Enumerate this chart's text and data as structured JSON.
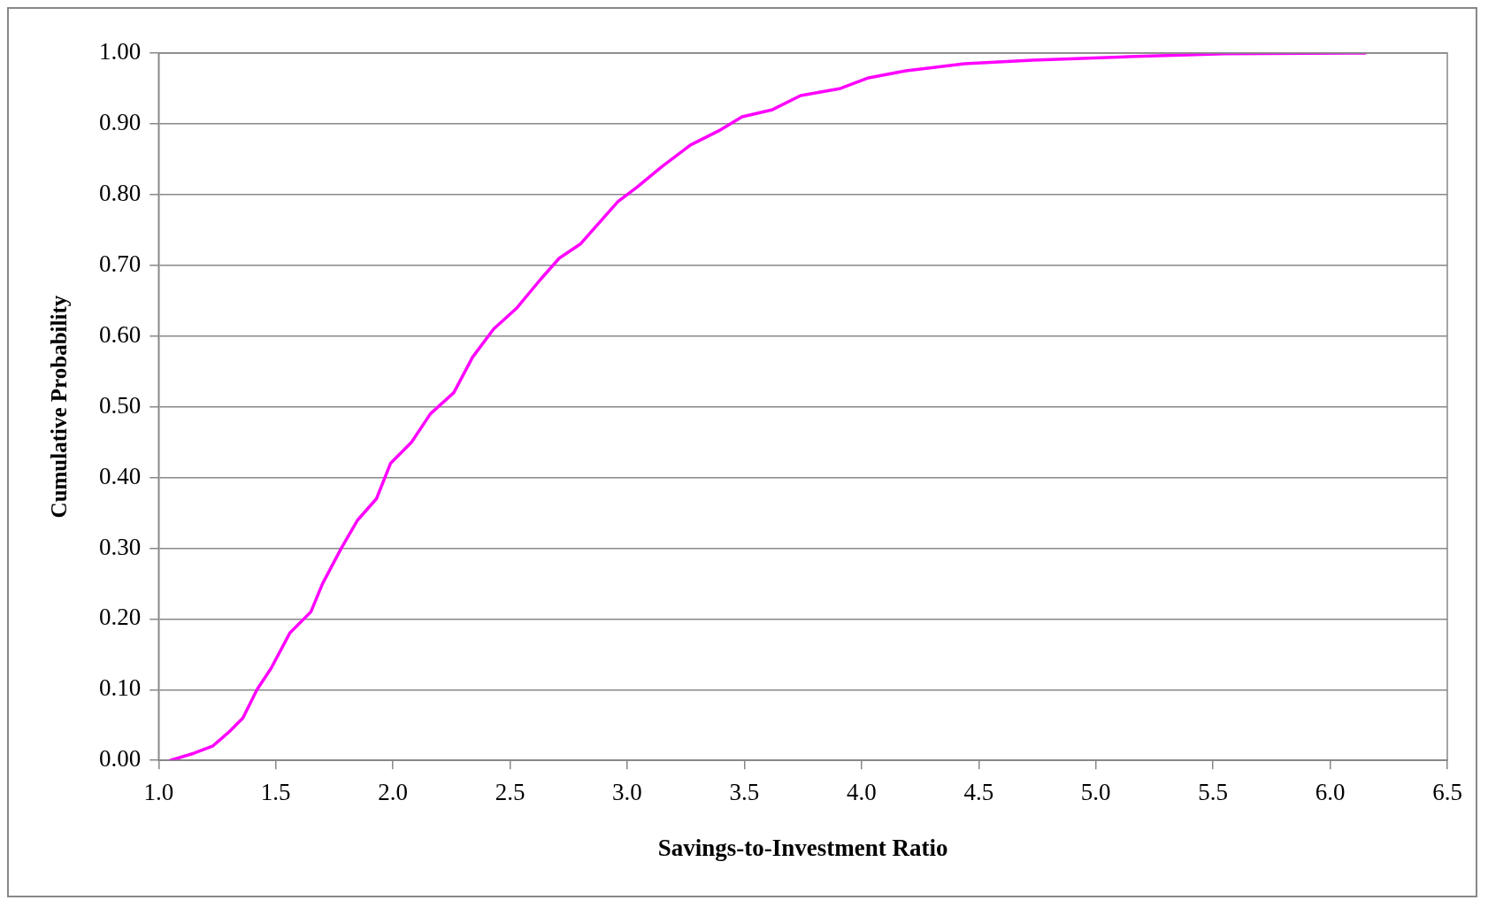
{
  "chart_data": {
    "type": "line",
    "xlabel": "Savings-to-Investment Ratio",
    "ylabel": "Cumulative Probability",
    "series": [
      {
        "color": "#ff00ff",
        "x": [
          1.05,
          1.15,
          1.23,
          1.3,
          1.36,
          1.42,
          1.48,
          1.56,
          1.65,
          1.7,
          1.78,
          1.85,
          1.93,
          1.99,
          2.08,
          2.16,
          2.26,
          2.34,
          2.43,
          2.53,
          2.63,
          2.71,
          2.8,
          2.88,
          2.96,
          3.04,
          3.15,
          3.27,
          3.39,
          3.49,
          3.62,
          3.74,
          3.91,
          4.03,
          4.19,
          4.44,
          4.73,
          5.14,
          5.55,
          6.15
        ],
        "values": [
          0,
          0.01,
          0.02,
          0.04,
          0.06,
          0.1,
          0.13,
          0.18,
          0.21,
          0.25,
          0.3,
          0.34,
          0.37,
          0.42,
          0.45,
          0.49,
          0.52,
          0.57,
          0.61,
          0.64,
          0.68,
          0.71,
          0.73,
          0.76,
          0.79,
          0.81,
          0.84,
          0.87,
          0.89,
          0.91,
          0.92,
          0.94,
          0.95,
          0.965,
          0.975,
          0.985,
          0.99,
          0.995,
          0.999,
          1.0
        ]
      }
    ],
    "xlim": [
      1.0,
      6.5
    ],
    "xticks": [
      {
        "value": 1.0,
        "label": "1.0"
      },
      {
        "value": 1.5,
        "label": "1.5"
      },
      {
        "value": 2.0,
        "label": "2.0"
      },
      {
        "value": 2.5,
        "label": "2.5"
      },
      {
        "value": 3.0,
        "label": "3.0"
      },
      {
        "value": 3.5,
        "label": "3.5"
      },
      {
        "value": 4.0,
        "label": "4.0"
      },
      {
        "value": 4.5,
        "label": "4.5"
      },
      {
        "value": 5.0,
        "label": "5.0"
      },
      {
        "value": 5.5,
        "label": "5.5"
      },
      {
        "value": 6.0,
        "label": "6.0"
      },
      {
        "value": 6.5,
        "label": "6.5"
      }
    ],
    "ylim": [
      0,
      1
    ],
    "yticks": [
      {
        "value": 0,
        "label": "0.00"
      },
      {
        "value": 0.1,
        "label": "0.10"
      },
      {
        "value": 0.2,
        "label": "0.20"
      },
      {
        "value": 0.3,
        "label": "0.30"
      },
      {
        "value": 0.4,
        "label": "0.40"
      },
      {
        "value": 0.5,
        "label": "0.50"
      },
      {
        "value": 0.6,
        "label": "0.60"
      },
      {
        "value": 0.7,
        "label": "0.70"
      },
      {
        "value": 0.8,
        "label": "0.80"
      },
      {
        "value": 0.9,
        "label": "0.90"
      },
      {
        "value": 1,
        "label": "1.00"
      }
    ],
    "grid": "y",
    "marker": "none",
    "line_style": "solid"
  }
}
